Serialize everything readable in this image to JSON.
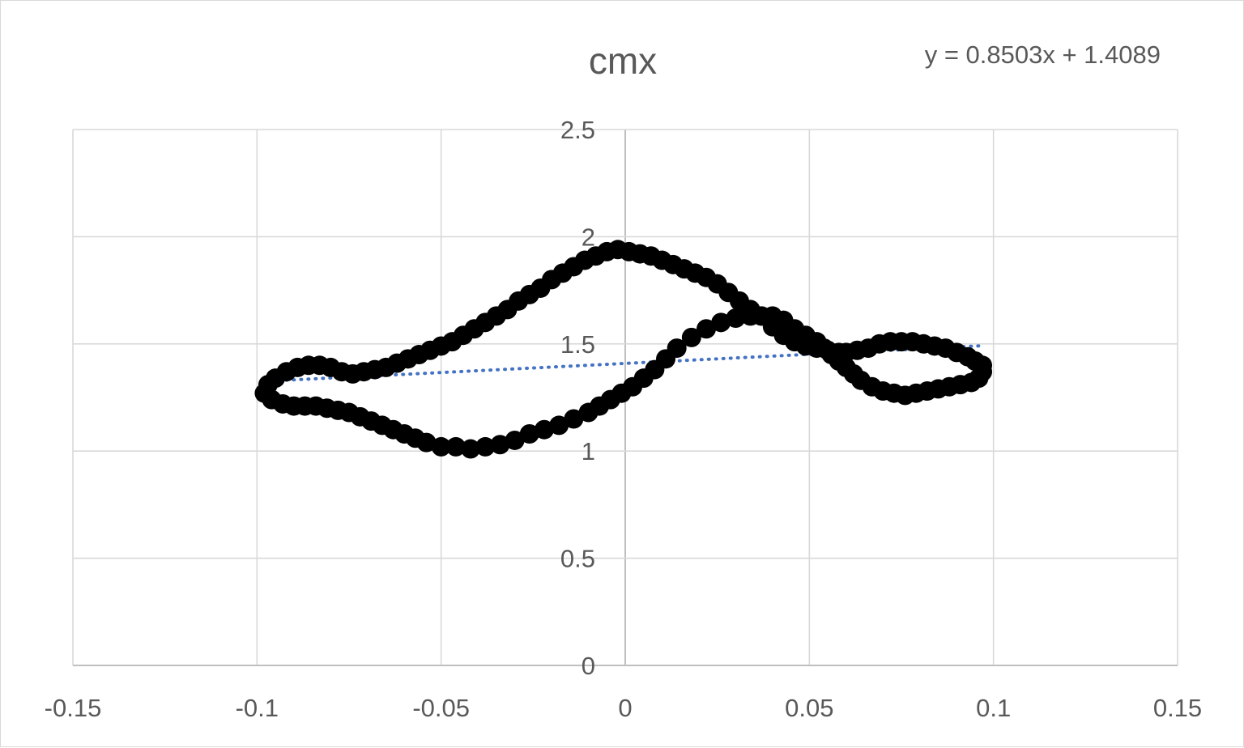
{
  "chart_data": {
    "type": "scatter",
    "title": "cmx",
    "xlabel": "",
    "ylabel": "",
    "xlim": [
      -0.15,
      0.15
    ],
    "ylim": [
      0,
      2.5
    ],
    "x_ticks": [
      "-0.15",
      "-0.1",
      "-0.05",
      "0",
      "0.05",
      "0.1",
      "0.15"
    ],
    "y_ticks": [
      "0",
      "0.5",
      "1",
      "1.5",
      "2",
      "2.5"
    ],
    "grid": true,
    "legend": "none",
    "marker_color": "#000000",
    "trendline": {
      "type": "linear",
      "slope": 0.8503,
      "intercept": 1.4089,
      "x_range": [
        -0.098,
        0.097
      ],
      "color": "#4472c4",
      "style": "dotted",
      "equation_label": "y = 0.8503x + 1.4089"
    },
    "series": [
      {
        "points": [
          [
            -0.098,
            1.27
          ],
          [
            -0.097,
            1.31
          ],
          [
            -0.095,
            1.34
          ],
          [
            -0.092,
            1.37
          ],
          [
            -0.089,
            1.39
          ],
          [
            -0.086,
            1.4
          ],
          [
            -0.083,
            1.4
          ],
          [
            -0.08,
            1.39
          ],
          [
            -0.077,
            1.37
          ],
          [
            -0.074,
            1.36
          ],
          [
            -0.071,
            1.37
          ],
          [
            -0.068,
            1.38
          ],
          [
            -0.065,
            1.39
          ],
          [
            -0.062,
            1.41
          ],
          [
            -0.059,
            1.43
          ],
          [
            -0.056,
            1.45
          ],
          [
            -0.053,
            1.47
          ],
          [
            -0.05,
            1.49
          ],
          [
            -0.047,
            1.51
          ],
          [
            -0.044,
            1.54
          ],
          [
            -0.041,
            1.57
          ],
          [
            -0.038,
            1.6
          ],
          [
            -0.035,
            1.63
          ],
          [
            -0.032,
            1.66
          ],
          [
            -0.029,
            1.7
          ],
          [
            -0.026,
            1.73
          ],
          [
            -0.023,
            1.76
          ],
          [
            -0.02,
            1.8
          ],
          [
            -0.017,
            1.83
          ],
          [
            -0.014,
            1.86
          ],
          [
            -0.011,
            1.89
          ],
          [
            -0.008,
            1.91
          ],
          [
            -0.005,
            1.93
          ],
          [
            -0.002,
            1.94
          ],
          [
            0.001,
            1.93
          ],
          [
            0.004,
            1.92
          ],
          [
            0.007,
            1.91
          ],
          [
            0.01,
            1.89
          ],
          [
            0.013,
            1.87
          ],
          [
            0.016,
            1.85
          ],
          [
            0.019,
            1.83
          ],
          [
            0.022,
            1.81
          ],
          [
            0.025,
            1.78
          ],
          [
            0.028,
            1.74
          ],
          [
            0.031,
            1.7
          ],
          [
            0.034,
            1.66
          ],
          [
            0.037,
            1.63
          ],
          [
            0.04,
            1.58
          ],
          [
            0.043,
            1.54
          ],
          [
            0.046,
            1.51
          ],
          [
            0.049,
            1.49
          ],
          [
            0.052,
            1.48
          ],
          [
            0.055,
            1.47
          ],
          [
            0.058,
            1.46
          ],
          [
            0.06,
            1.46
          ],
          [
            0.063,
            1.47
          ],
          [
            0.066,
            1.48
          ],
          [
            0.069,
            1.5
          ],
          [
            0.072,
            1.51
          ],
          [
            0.075,
            1.51
          ],
          [
            0.078,
            1.51
          ],
          [
            0.081,
            1.5
          ],
          [
            0.084,
            1.49
          ],
          [
            0.087,
            1.48
          ],
          [
            0.09,
            1.46
          ],
          [
            0.093,
            1.44
          ],
          [
            0.095,
            1.42
          ],
          [
            0.097,
            1.4
          ],
          [
            0.097,
            1.37
          ],
          [
            0.096,
            1.34
          ],
          [
            0.094,
            1.32
          ],
          [
            0.091,
            1.31
          ],
          [
            0.088,
            1.3
          ],
          [
            0.085,
            1.29
          ],
          [
            0.082,
            1.28
          ],
          [
            0.079,
            1.27
          ],
          [
            0.076,
            1.26
          ],
          [
            0.073,
            1.27
          ],
          [
            0.07,
            1.28
          ],
          [
            0.067,
            1.3
          ],
          [
            0.064,
            1.33
          ],
          [
            0.062,
            1.36
          ],
          [
            0.06,
            1.39
          ],
          [
            0.058,
            1.42
          ],
          [
            0.056,
            1.45
          ],
          [
            0.054,
            1.48
          ],
          [
            0.052,
            1.51
          ],
          [
            0.049,
            1.54
          ],
          [
            0.046,
            1.57
          ],
          [
            0.043,
            1.61
          ],
          [
            0.04,
            1.63
          ],
          [
            0.037,
            1.63
          ],
          [
            0.034,
            1.63
          ],
          [
            0.03,
            1.62
          ],
          [
            0.026,
            1.6
          ],
          [
            0.022,
            1.57
          ],
          [
            0.018,
            1.53
          ],
          [
            0.014,
            1.48
          ],
          [
            0.011,
            1.43
          ],
          [
            0.008,
            1.38
          ],
          [
            0.005,
            1.34
          ],
          [
            0.002,
            1.3
          ],
          [
            -0.001,
            1.27
          ],
          [
            -0.004,
            1.24
          ],
          [
            -0.007,
            1.21
          ],
          [
            -0.01,
            1.18
          ],
          [
            -0.014,
            1.15
          ],
          [
            -0.018,
            1.12
          ],
          [
            -0.022,
            1.1
          ],
          [
            -0.026,
            1.08
          ],
          [
            -0.03,
            1.05
          ],
          [
            -0.034,
            1.03
          ],
          [
            -0.038,
            1.02
          ],
          [
            -0.042,
            1.01
          ],
          [
            -0.046,
            1.02
          ],
          [
            -0.05,
            1.02
          ],
          [
            -0.054,
            1.04
          ],
          [
            -0.057,
            1.06
          ],
          [
            -0.06,
            1.08
          ],
          [
            -0.063,
            1.1
          ],
          [
            -0.066,
            1.12
          ],
          [
            -0.069,
            1.14
          ],
          [
            -0.072,
            1.16
          ],
          [
            -0.075,
            1.18
          ],
          [
            -0.078,
            1.19
          ],
          [
            -0.081,
            1.2
          ],
          [
            -0.084,
            1.21
          ],
          [
            -0.087,
            1.21
          ],
          [
            -0.09,
            1.21
          ],
          [
            -0.093,
            1.22
          ],
          [
            -0.096,
            1.24
          ]
        ]
      }
    ]
  }
}
